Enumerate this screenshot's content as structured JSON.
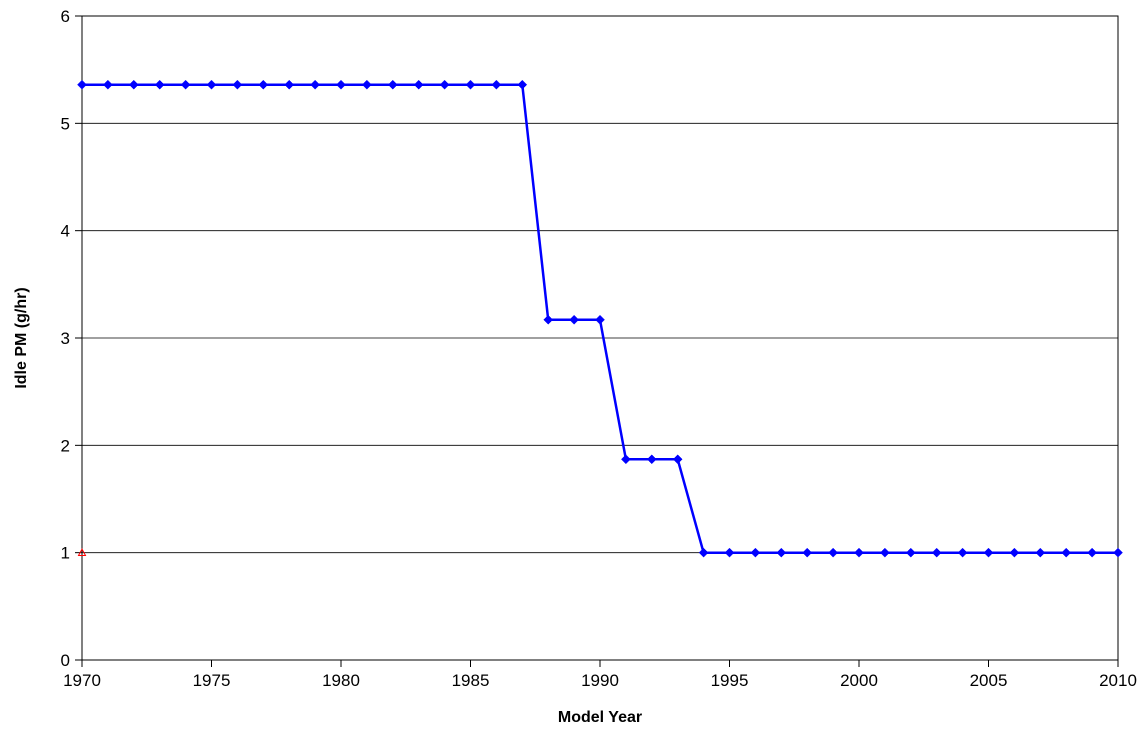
{
  "chart_data": {
    "type": "line",
    "title": "",
    "xlabel": "Model Year",
    "ylabel": "Idle PM (g/hr)",
    "xlim": [
      1970,
      2010
    ],
    "ylim": [
      0,
      6
    ],
    "x_ticks": [
      1970,
      1975,
      1980,
      1985,
      1990,
      1995,
      2000,
      2005,
      2010
    ],
    "y_ticks": [
      0,
      1,
      2,
      3,
      4,
      5,
      6
    ],
    "x_tick_labels": [
      "1970",
      "1975",
      "1980",
      "1985",
      "1990",
      "1995",
      "2000",
      "2005",
      "2010"
    ],
    "y_tick_labels": [
      "0",
      "1",
      "2",
      "3",
      "4",
      "5",
      "6"
    ],
    "grid": "horizontal",
    "legend": "none",
    "series": [
      {
        "color": "#0000ff",
        "marker": "diamond",
        "x": [
          1970,
          1971,
          1972,
          1973,
          1974,
          1975,
          1976,
          1977,
          1978,
          1979,
          1980,
          1981,
          1982,
          1983,
          1984,
          1985,
          1986,
          1987,
          1988,
          1989,
          1990,
          1991,
          1992,
          1993,
          1994,
          1995,
          1996,
          1997,
          1998,
          1999,
          2000,
          2001,
          2002,
          2003,
          2004,
          2005,
          2006,
          2007,
          2008,
          2009,
          2010
        ],
        "y": [
          5.36,
          5.36,
          5.36,
          5.36,
          5.36,
          5.36,
          5.36,
          5.36,
          5.36,
          5.36,
          5.36,
          5.36,
          5.36,
          5.36,
          5.36,
          5.36,
          5.36,
          5.36,
          3.17,
          3.17,
          3.17,
          1.87,
          1.87,
          1.87,
          1.0,
          1.0,
          1.0,
          1.0,
          1.0,
          1.0,
          1.0,
          1.0,
          1.0,
          1.0,
          1.0,
          1.0,
          1.0,
          1.0,
          1.0,
          1.0,
          1.0
        ]
      },
      {
        "color": "#ff0000",
        "marker": "triangle-open",
        "x": [
          1970
        ],
        "y": [
          1.0
        ]
      }
    ]
  }
}
